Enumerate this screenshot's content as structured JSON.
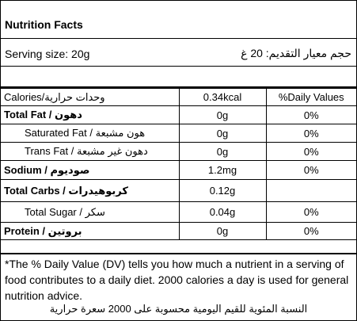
{
  "title": "Nutrition Facts",
  "serving_size": "Serving size: 20g",
  "serving_size_ar": "حجم معيار التقديم: 20 غ",
  "table": {
    "header": [
      "Calories/وحدات حرارية",
      "0.34kcal",
      "%Daily Values"
    ],
    "rows": [
      [
        "Total Fat / دهون",
        "0g",
        "0%"
      ],
      [
        "Saturated Fat / هون مشبعة",
        "0g",
        "0%"
      ],
      [
        "Trans Fat / دهون غير مشبعة",
        "0g",
        "0%"
      ],
      [
        "Sodium / صوديوم",
        "1.2mg",
        "0%"
      ],
      [
        "Total Carbs / كربوهيدرات",
        "0.12g"
      ],
      [
        "Total Sugar / سكر",
        "0.04g",
        "0%"
      ],
      [
        "Protein / بروتين",
        "0g",
        "0%"
      ]
    ]
  },
  "footnote": "*The % Daily Value (DV) tells you how much a nutrient in a serving of food contributes to a daily diet. 2000 calories a day is used for general nutrition advice.",
  "footnote_ar": "النسبة المئوية للقيم اليومية محسوبة على 2000 سعرة حرارية"
}
